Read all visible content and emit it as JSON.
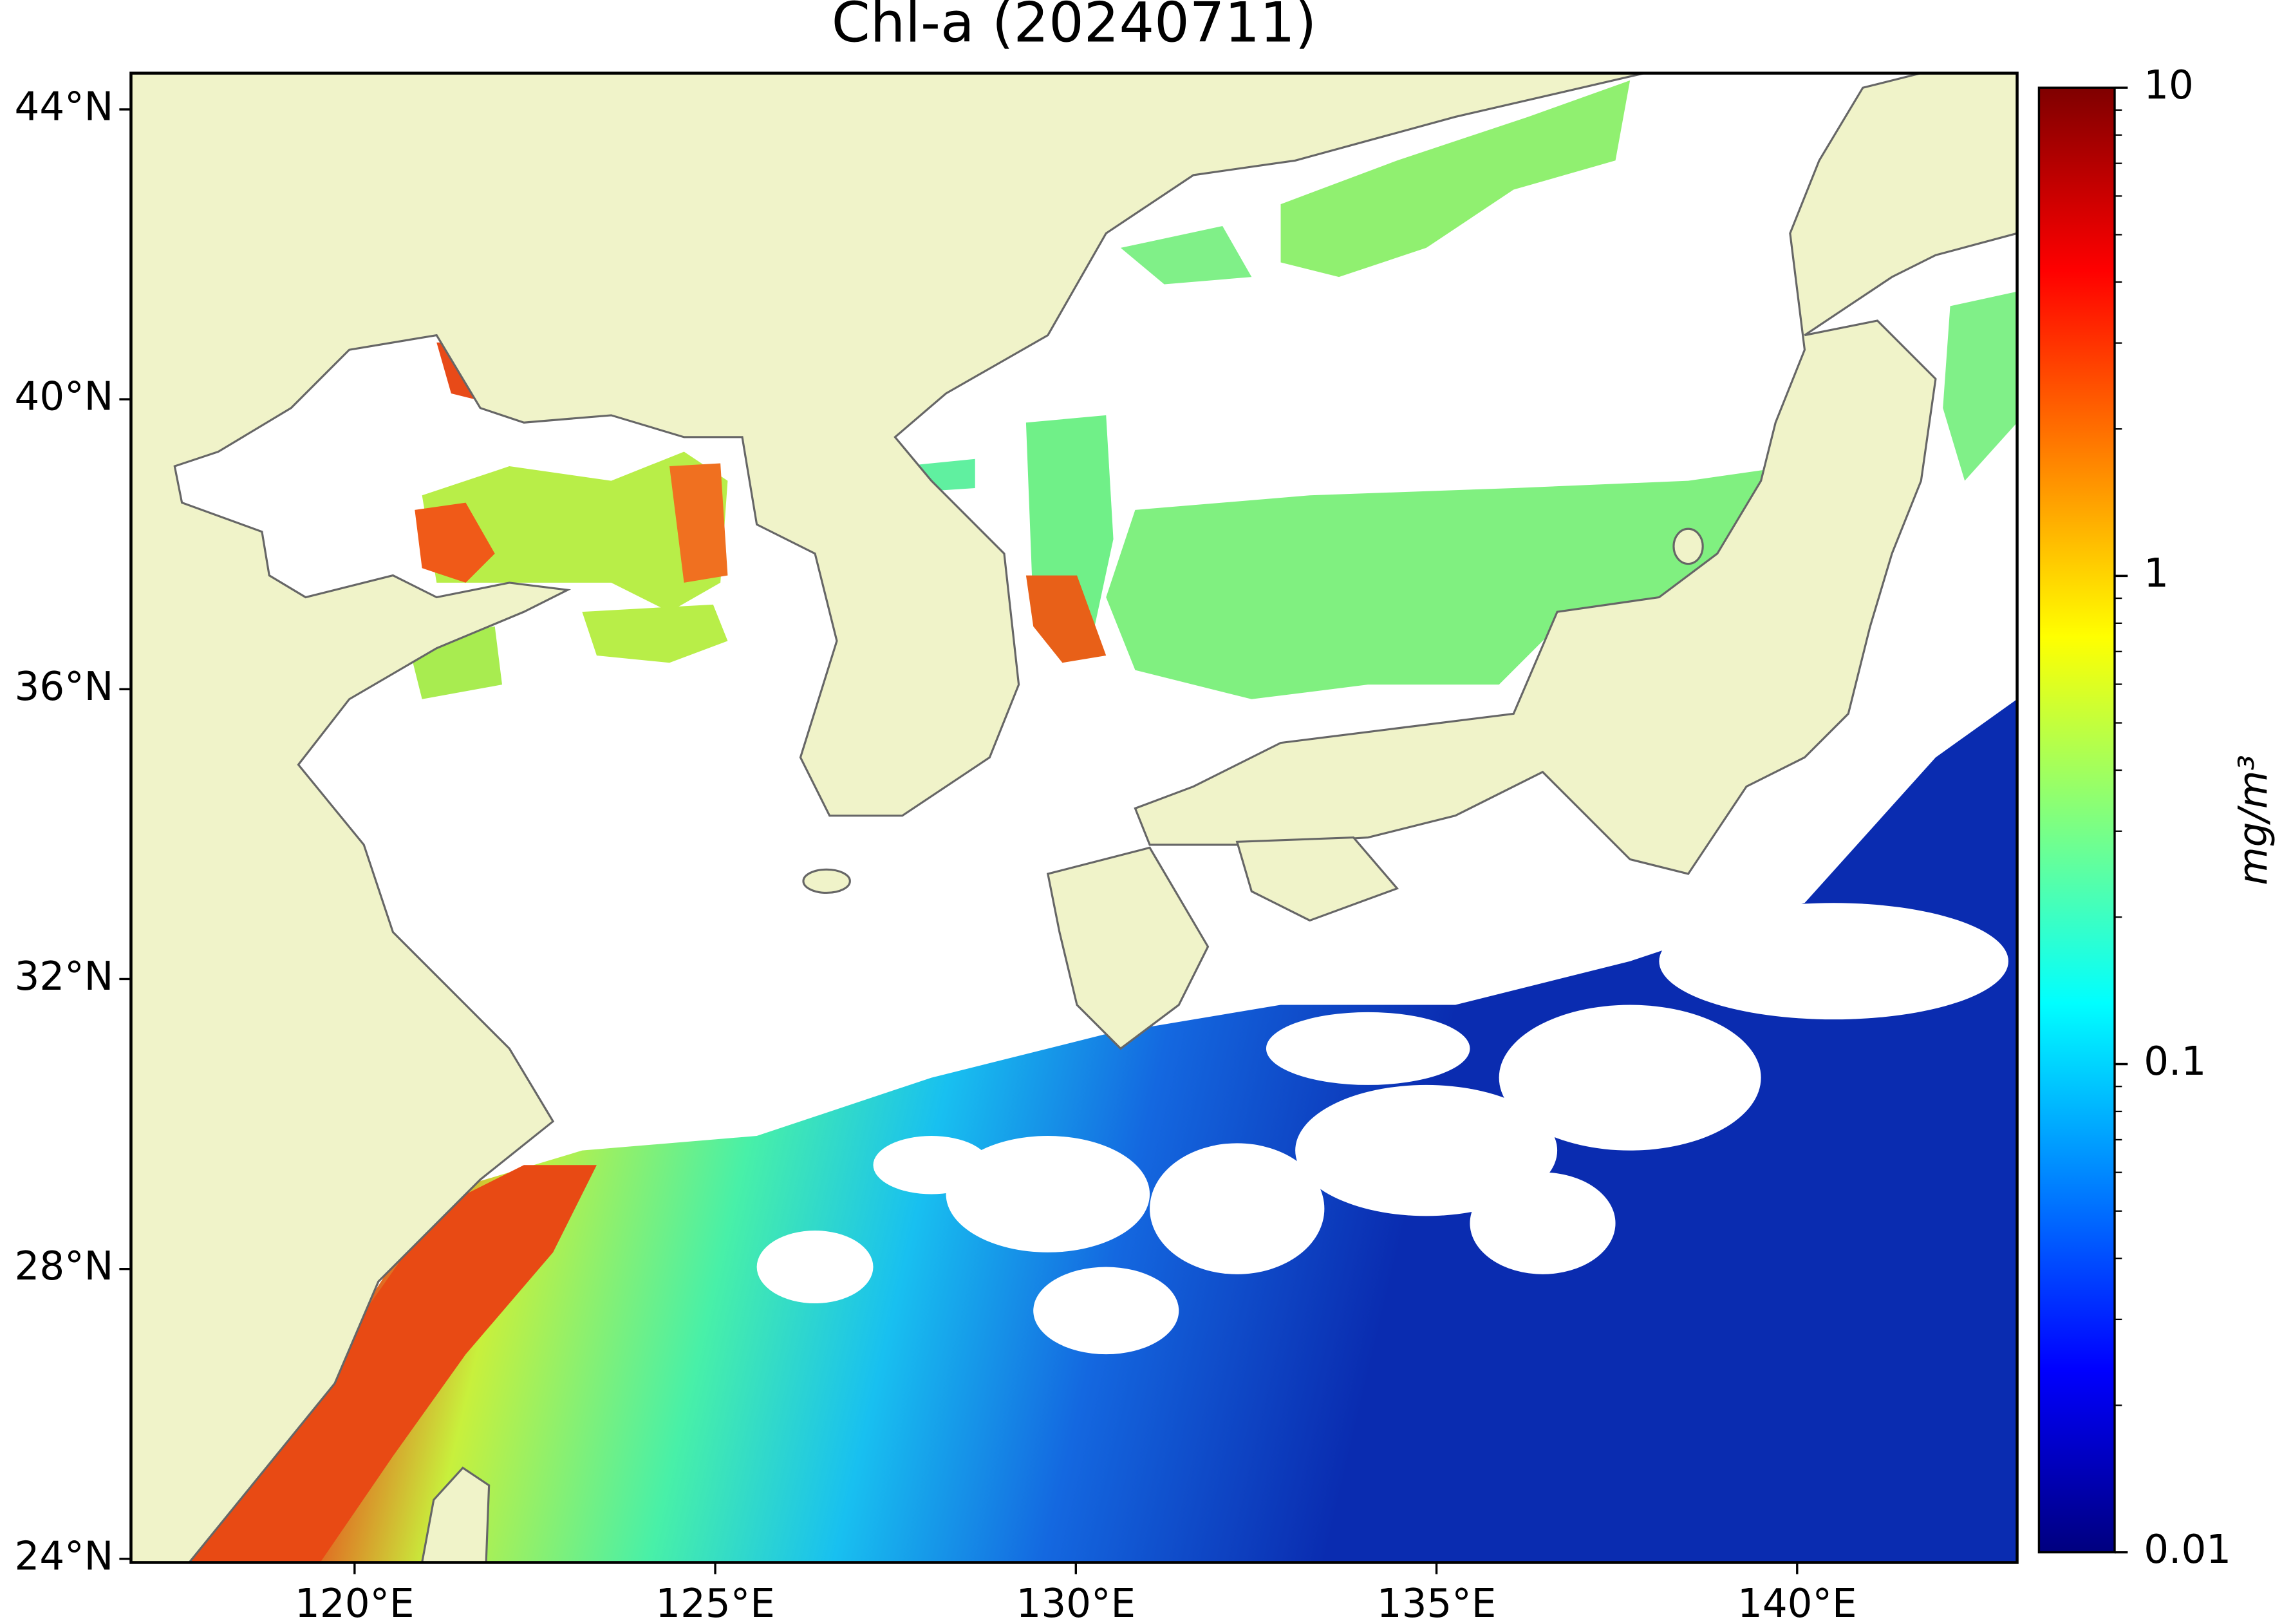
{
  "chart_data": {
    "type": "map",
    "title": "Chl-a (20240711)",
    "xlim": [
      116.9,
      143.05
    ],
    "ylim": [
      23.95,
      44.5
    ],
    "xticks": [
      {
        "value": 120,
        "label": "120°E"
      },
      {
        "value": 125,
        "label": "125°E"
      },
      {
        "value": 130,
        "label": "130°E"
      },
      {
        "value": 135,
        "label": "135°E"
      },
      {
        "value": 140,
        "label": "140°E"
      }
    ],
    "yticks": [
      {
        "value": 24,
        "label": "24°N"
      },
      {
        "value": 28,
        "label": "28°N"
      },
      {
        "value": 32,
        "label": "32°N"
      },
      {
        "value": 36,
        "label": "36°N"
      },
      {
        "value": 40,
        "label": "40°N"
      },
      {
        "value": 44,
        "label": "44°N"
      }
    ],
    "colorbar": {
      "label": "mg/m³",
      "scale": "log",
      "colormap": "jet",
      "lim": [
        0.01,
        10
      ],
      "ticks": [
        0.01,
        0.1,
        1,
        10
      ],
      "minor_ticks": [
        0.02,
        0.03,
        0.04,
        0.05,
        0.06,
        0.07,
        0.08,
        0.09,
        0.2,
        0.3,
        0.4,
        0.5,
        0.6,
        0.7,
        0.8,
        0.9,
        2,
        3,
        4,
        5,
        6,
        7,
        8,
        9
      ]
    },
    "land_color": "#f0f3c9"
  }
}
